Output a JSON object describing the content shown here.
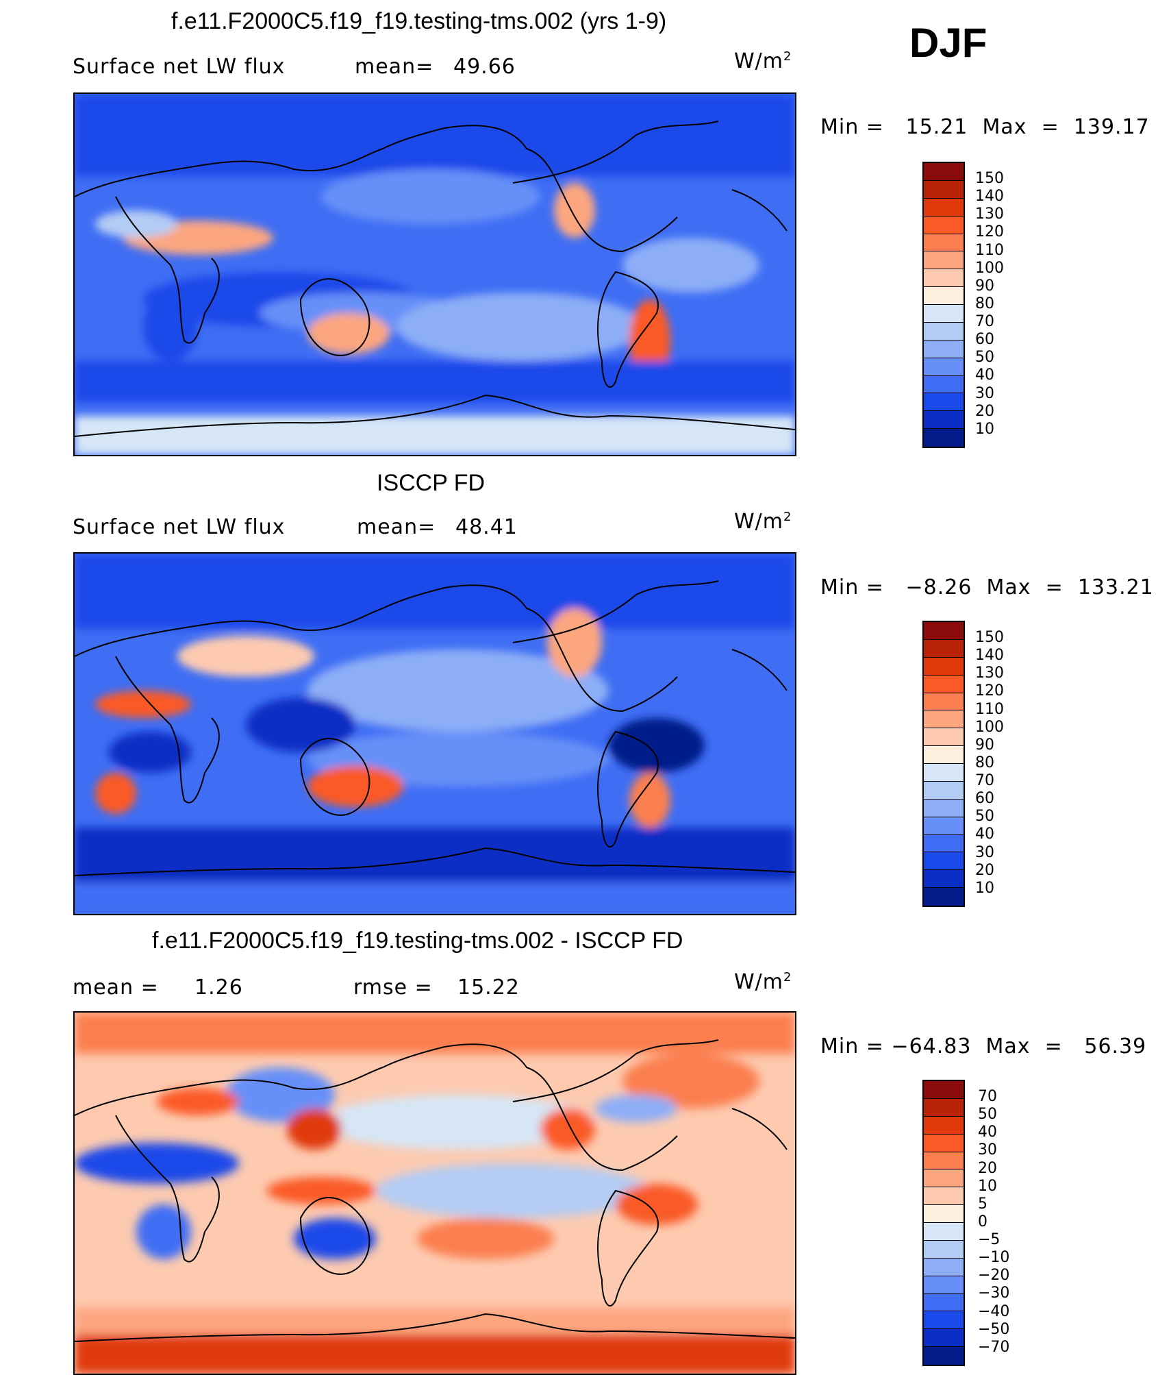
{
  "season": "DJF",
  "panels": [
    {
      "id": "model",
      "title": "f.e11.F2000C5.f19_f19.testing-tms.002 (yrs 1-9)",
      "left_label": "Surface net LW flux",
      "stat1_label": "mean=",
      "stat1_value": "49.66",
      "stat2_label": "",
      "stat2_value": "",
      "units_base": "W/m",
      "units_exp": "2",
      "minmax": "Min =   15.21  Max  =  139.17",
      "colorbar_labels": [
        "150",
        "140",
        "130",
        "120",
        "110",
        "100",
        "90",
        "80",
        "70",
        "60",
        "50",
        "40",
        "30",
        "20",
        "10"
      ],
      "colorbar_colors": [
        "#8b0b0b",
        "#b82307",
        "#e03a0a",
        "#fa5a26",
        "#fb7f4f",
        "#fca680",
        "#fdcab0",
        "#feeedd",
        "#d6e6f6",
        "#b3ccf4",
        "#8daef7",
        "#6690f8",
        "#3f6ef4",
        "#1a4ae9",
        "#0b2fc4",
        "#041c8a"
      ]
    },
    {
      "id": "obs",
      "title": "ISCCP FD",
      "left_label": "Surface net LW flux",
      "stat1_label": "mean=",
      "stat1_value": "48.41",
      "stat2_label": "",
      "stat2_value": "",
      "units_base": "W/m",
      "units_exp": "2",
      "minmax": "Min =   −8.26  Max  =  133.21",
      "colorbar_labels": [
        "150",
        "140",
        "130",
        "120",
        "110",
        "100",
        "90",
        "80",
        "70",
        "60",
        "50",
        "40",
        "30",
        "20",
        "10"
      ],
      "colorbar_colors": [
        "#8b0b0b",
        "#b82307",
        "#e03a0a",
        "#fa5a26",
        "#fb7f4f",
        "#fca680",
        "#fdcab0",
        "#feeedd",
        "#d6e6f6",
        "#b3ccf4",
        "#8daef7",
        "#6690f8",
        "#3f6ef4",
        "#1a4ae9",
        "#0b2fc4",
        "#041c8a"
      ]
    },
    {
      "id": "diff",
      "title": "f.e11.F2000C5.f19_f19.testing-tms.002 - ISCCP FD",
      "left_label": "mean =",
      "stat1_label": "1.26",
      "stat1_value": "",
      "stat2_label": "rmse =",
      "stat2_value": "15.22",
      "units_base": "W/m",
      "units_exp": "2",
      "minmax": "Min = −64.83  Max  =   56.39",
      "colorbar_labels": [
        "70",
        "50",
        "40",
        "30",
        "20",
        "10",
        "5",
        "0",
        "−5",
        "−10",
        "−20",
        "−30",
        "−40",
        "−50",
        "−70"
      ],
      "colorbar_colors": [
        "#8b0b0b",
        "#b82307",
        "#e03a0a",
        "#fa5a26",
        "#fb7f4f",
        "#fca680",
        "#fdcab0",
        "#feeedd",
        "#d6e6f6",
        "#b3ccf4",
        "#8daef7",
        "#6690f8",
        "#3f6ef4",
        "#1a4ae9",
        "#0b2fc4",
        "#041c8a"
      ]
    }
  ]
}
